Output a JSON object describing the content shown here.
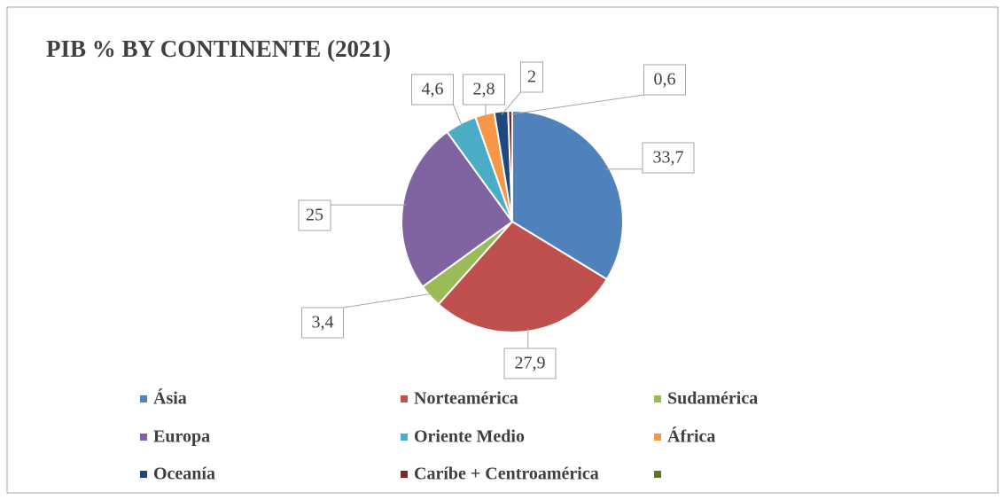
{
  "chart_data": {
    "type": "pie",
    "title": "PIB % BY CONTINENTE (2021)",
    "categories": [
      "Ásia",
      "Norteamérica",
      "Sudamérica",
      "Europa",
      "Oriente Medio",
      "África",
      "Oceanía",
      "Caríbe + Centroamérica",
      null
    ],
    "values": [
      33.7,
      27.9,
      3.4,
      25,
      4.6,
      2.8,
      2,
      0.6,
      0
    ],
    "value_labels": [
      "33,7",
      "27,9",
      "3,4",
      "25",
      "4,6",
      "2,8",
      "2",
      "0,6",
      null
    ],
    "colors": [
      "#4f81bd",
      "#c0504d",
      "#9bbb59",
      "#8064a2",
      "#4bacc6",
      "#f79646",
      "#1f497d",
      "#772c2a",
      "#5f7530"
    ],
    "legend": "bottom"
  }
}
